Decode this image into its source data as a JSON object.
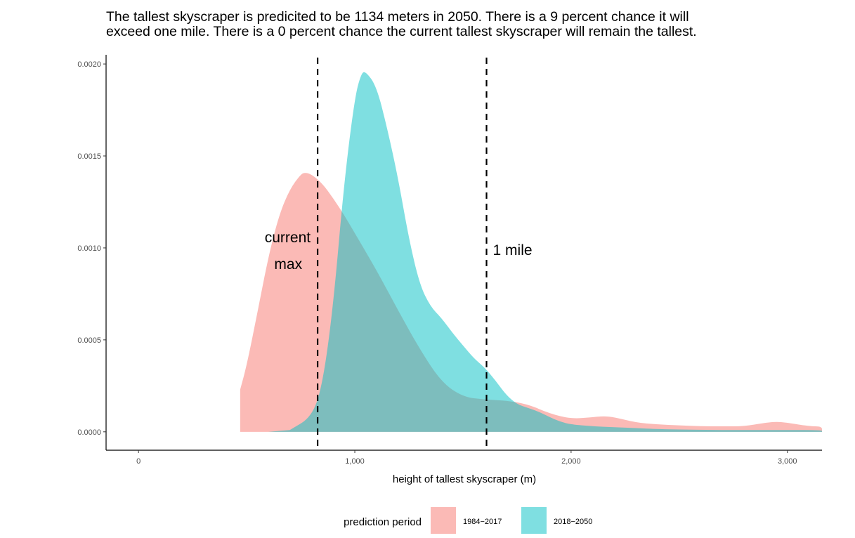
{
  "title_lines": [
    "The tallest skyscraper is predicited to be 1134 meters in 2050. There is a 9 percent chance it will",
    "exceed one mile. There is a 0 percent chance the current tallest skyscraper will remain the tallest."
  ],
  "chart_data": {
    "type": "area",
    "subtype": "density",
    "title": "The tallest skyscraper is predicited to be 1134 meters in 2050. There is a 9 percent chance it will exceed one mile. There is a 0 percent chance the current tallest skyscraper will remain the tallest.",
    "xlabel": "height of tallest skyscraper (m)",
    "ylabel": "",
    "xlim": [
      -150,
      3160
    ],
    "ylim": [
      -0.0001,
      0.00205
    ],
    "x_ticks": [
      0,
      1000,
      2000,
      3000
    ],
    "x_tick_labels": [
      "0",
      "1,000",
      "2,000",
      "3,000"
    ],
    "y_ticks": [
      0,
      0.0005,
      0.001,
      0.0015,
      0.002
    ],
    "y_tick_labels": [
      "0.0000",
      "0.0005",
      "0.0010",
      "0.0015",
      "0.0020"
    ],
    "grid": false,
    "legend": {
      "title": "prediction period",
      "position": "bottom",
      "entries": [
        "1984−2017",
        "2018−2050"
      ]
    },
    "series": [
      {
        "name": "1984−2017",
        "color": "#F8766D",
        "alpha": 0.5,
        "x": [
          470,
          470,
          500,
          550,
          600,
          650,
          700,
          750,
          770,
          800,
          850,
          900,
          950,
          1000,
          1100,
          1200,
          1300,
          1400,
          1500,
          1600,
          1700,
          1800,
          1900,
          2000,
          2100,
          2150,
          2200,
          2300,
          2400,
          2500,
          2600,
          2700,
          2800,
          2900,
          2950,
          3000,
          3100,
          3160,
          3160
        ],
        "y": [
          0,
          0.00023,
          0.00036,
          0.00065,
          0.00095,
          0.00118,
          0.00132,
          0.0014,
          0.00141,
          0.0014,
          0.00135,
          0.00127,
          0.00118,
          0.00108,
          0.00088,
          0.00066,
          0.00045,
          0.00027,
          0.00019,
          0.000175,
          0.00017,
          0.00015,
          0.0001,
          7e-05,
          8e-05,
          8.5e-05,
          8e-05,
          5e-05,
          4e-05,
          3.5e-05,
          3e-05,
          3e-05,
          3e-05,
          5e-05,
          5.5e-05,
          5e-05,
          3e-05,
          3e-05,
          0
        ]
      },
      {
        "name": "2018−2050",
        "color": "#00BFC4",
        "alpha": 0.5,
        "x": [
          600,
          700,
          800,
          850,
          900,
          950,
          1000,
          1030,
          1050,
          1100,
          1150,
          1200,
          1250,
          1300,
          1350,
          1400,
          1450,
          1500,
          1550,
          1600,
          1650,
          1700,
          1750,
          1800,
          1850,
          1900,
          1950,
          2000,
          2100,
          2200,
          2300,
          2400,
          2600,
          2800,
          3000,
          3160,
          3160
        ],
        "y": [
          0,
          1e-05,
          8e-05,
          0.00025,
          0.00068,
          0.00135,
          0.00182,
          0.00195,
          0.00196,
          0.00188,
          0.00165,
          0.00138,
          0.00105,
          0.0008,
          0.00068,
          0.00062,
          0.00054,
          0.00047,
          0.0004,
          0.00035,
          0.00028,
          0.0002,
          0.00015,
          0.00013,
          0.00011,
          8e-05,
          5.5e-05,
          4e-05,
          3e-05,
          2.5e-05,
          2e-05,
          1.5e-05,
          1e-05,
          1e-05,
          1e-05,
          1e-05,
          0
        ]
      }
    ],
    "reference_lines": [
      {
        "x": 828,
        "style": "dashed",
        "label_lines": [
          "current",
          "max"
        ]
      },
      {
        "x": 1609,
        "style": "dashed",
        "label_lines": [
          "1 mile"
        ]
      }
    ]
  }
}
